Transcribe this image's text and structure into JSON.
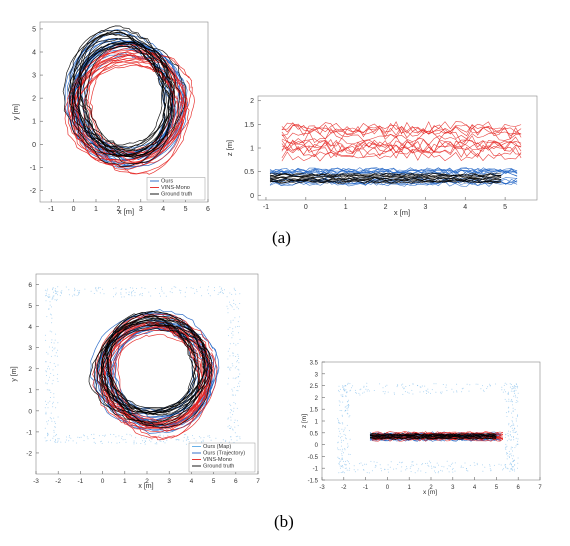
{
  "captions": {
    "a": "(a)",
    "b": "(b)"
  },
  "colors": {
    "ours": "#1f63c4",
    "vins": "#e5221f",
    "gt": "#000000",
    "map": "#5aa9e6"
  },
  "chart_data": [
    {
      "id": "a-left",
      "type": "line",
      "xlabel": "x [m]",
      "ylabel": "y [m]",
      "xlim": [
        -1.5,
        6
      ],
      "ylim": [
        -2.5,
        5.3
      ],
      "xticks": [
        -1,
        0,
        1,
        2,
        3,
        4,
        5,
        6
      ],
      "yticks": [
        -2,
        -1,
        0,
        1,
        2,
        3,
        4,
        5
      ],
      "legend": {
        "position": "bottom-right",
        "entries": [
          "Ours",
          "VINS-Mono",
          "Ground truth"
        ]
      },
      "series": [
        {
          "name": "Ours",
          "color": "#1f63c4",
          "shape": "loops",
          "center": [
            2.3,
            1.9
          ],
          "radii": [
            2.6,
            2.9
          ]
        },
        {
          "name": "VINS-Mono",
          "color": "#e5221f",
          "shape": "loops",
          "center": [
            2.5,
            1.6
          ],
          "radii": [
            2.7,
            2.8
          ]
        },
        {
          "name": "Ground truth",
          "color": "#000000",
          "shape": "loops",
          "center": [
            2.2,
            2.1
          ],
          "radii": [
            2.5,
            2.9
          ]
        }
      ]
    },
    {
      "id": "a-right",
      "type": "line",
      "xlabel": "x [m]",
      "ylabel": "z [m]",
      "xlim": [
        -1.2,
        5.8
      ],
      "ylim": [
        -0.1,
        2.1
      ],
      "xticks": [
        -1,
        0,
        1,
        2,
        3,
        4,
        5
      ],
      "yticks": [
        0,
        0.5,
        1,
        1.5,
        2
      ],
      "series": [
        {
          "name": "Ours",
          "color": "#1f63c4",
          "shape": "band",
          "x_range": [
            -0.9,
            5.3
          ],
          "z_range": [
            0.25,
            0.55
          ]
        },
        {
          "name": "VINS-Mono",
          "color": "#e5221f",
          "shape": "band",
          "x_range": [
            -0.6,
            5.4
          ],
          "z_range": [
            0.85,
            1.45
          ]
        },
        {
          "name": "Ground truth",
          "color": "#000000",
          "shape": "band",
          "x_range": [
            -0.9,
            4.9
          ],
          "z_range": [
            0.28,
            0.45
          ]
        }
      ]
    },
    {
      "id": "b-left",
      "type": "line",
      "xlabel": "x [m]",
      "ylabel": "y [m]",
      "xlim": [
        -3,
        7
      ],
      "ylim": [
        -3,
        6.5
      ],
      "xticks": [
        -3,
        -2,
        -1,
        0,
        1,
        2,
        3,
        4,
        5,
        6,
        7
      ],
      "yticks": [
        -2,
        -1,
        0,
        1,
        2,
        3,
        4,
        5,
        6
      ],
      "legend": {
        "position": "bottom-right",
        "entries": [
          "Ours (Map)",
          "Ours (Trajectory)",
          "VINS-Mono",
          "Ground truth"
        ]
      },
      "series": [
        {
          "name": "Ours (Map)",
          "color": "#5aa9e6",
          "shape": "scatter-frame",
          "x_range": [
            -2.6,
            6.2
          ],
          "y_range": [
            -1.6,
            5.9
          ]
        },
        {
          "name": "Ours (Trajectory)",
          "color": "#1f63c4",
          "shape": "loops",
          "center": [
            2.4,
            1.8
          ],
          "radii": [
            2.7,
            2.7
          ]
        },
        {
          "name": "VINS-Mono",
          "color": "#e5221f",
          "shape": "loops",
          "center": [
            2.4,
            1.7
          ],
          "radii": [
            2.6,
            2.8
          ]
        },
        {
          "name": "Ground truth",
          "color": "#000000",
          "shape": "loops",
          "center": [
            2.3,
            2.0
          ],
          "radii": [
            2.6,
            2.7
          ]
        }
      ]
    },
    {
      "id": "b-right",
      "type": "line",
      "xlabel": "x [m]",
      "ylabel": "z [m]",
      "xlim": [
        -3,
        7
      ],
      "ylim": [
        -1.5,
        3.5
      ],
      "xticks": [
        -3,
        -2,
        -1,
        0,
        1,
        2,
        3,
        4,
        5,
        6,
        7
      ],
      "yticks": [
        -1.5,
        -1,
        -0.5,
        0,
        0.5,
        1,
        1.5,
        2,
        2.5,
        3,
        3.5
      ],
      "series": [
        {
          "name": "Ours (Map)",
          "color": "#5aa9e6",
          "shape": "scatter-frame",
          "x_range": [
            -2.3,
            6.0
          ],
          "z_range": [
            -1.2,
            2.6
          ]
        },
        {
          "name": "Ours (Trajectory)",
          "color": "#1f63c4",
          "shape": "band",
          "x_range": [
            -0.8,
            5.2
          ],
          "z_range": [
            0.2,
            0.5
          ]
        },
        {
          "name": "VINS-Mono",
          "color": "#e5221f",
          "shape": "band",
          "x_range": [
            -0.7,
            5.3
          ],
          "z_range": [
            0.2,
            0.5
          ]
        },
        {
          "name": "Ground truth",
          "color": "#000000",
          "shape": "band",
          "x_range": [
            -0.8,
            5.0
          ],
          "z_range": [
            0.25,
            0.45
          ]
        }
      ]
    }
  ]
}
